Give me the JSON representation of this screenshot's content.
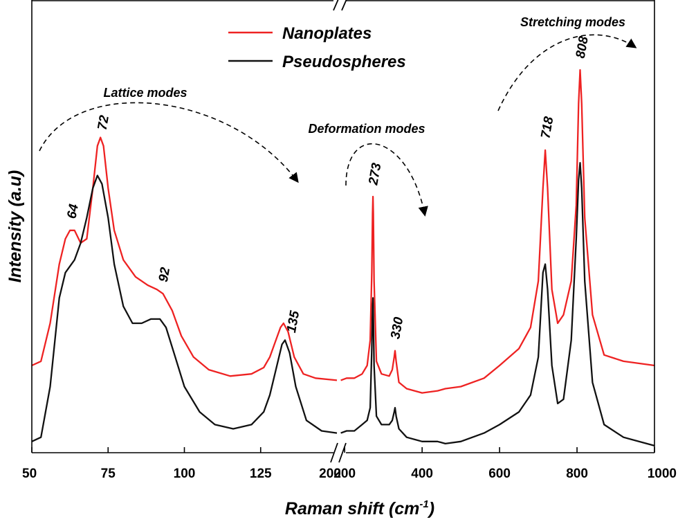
{
  "chart_data": {
    "type": "line",
    "xlabel": "Raman shift (cm",
    "xlabel_sup": "-1",
    "xlabel_close": ")",
    "ylabel": "Intensity (a.u)",
    "x_axis_break": true,
    "x_segments": [
      {
        "range": [
          50,
          150
        ],
        "ticks": [
          50,
          75,
          100,
          125
        ]
      },
      {
        "range": [
          180,
          1000
        ],
        "ticks": [
          200,
          400,
          600,
          800,
          1000
        ]
      }
    ],
    "x_tick_labels": [
      "50",
      "75",
      "100",
      "125",
      "200",
      "400",
      "600",
      "800",
      "1000"
    ],
    "break_label": "200",
    "grid": false,
    "legend_position": "top-center",
    "series": [
      {
        "name": "Nanoplates",
        "color": "#ee2222",
        "points": [
          [
            50,
            0.2
          ],
          [
            53,
            0.21
          ],
          [
            56,
            0.3
          ],
          [
            59,
            0.44
          ],
          [
            61,
            0.5
          ],
          [
            62.5,
            0.52
          ],
          [
            64,
            0.52
          ],
          [
            66,
            0.49
          ],
          [
            68,
            0.5
          ],
          [
            70,
            0.62
          ],
          [
            71.5,
            0.72
          ],
          [
            72.5,
            0.74
          ],
          [
            73.5,
            0.72
          ],
          [
            75,
            0.62
          ],
          [
            77,
            0.52
          ],
          [
            80,
            0.45
          ],
          [
            84,
            0.41
          ],
          [
            88,
            0.39
          ],
          [
            91,
            0.38
          ],
          [
            93,
            0.37
          ],
          [
            96,
            0.33
          ],
          [
            99,
            0.27
          ],
          [
            103,
            0.22
          ],
          [
            108,
            0.19
          ],
          [
            115,
            0.175
          ],
          [
            122,
            0.18
          ],
          [
            126,
            0.195
          ],
          [
            128,
            0.22
          ],
          [
            130,
            0.26
          ],
          [
            131.5,
            0.29
          ],
          [
            132.5,
            0.3
          ],
          [
            134,
            0.28
          ],
          [
            136,
            0.22
          ],
          [
            139,
            0.18
          ],
          [
            143,
            0.17
          ],
          [
            150,
            0.165
          ],
          [
            190,
            0.165
          ],
          [
            205,
            0.17
          ],
          [
            225,
            0.17
          ],
          [
            245,
            0.18
          ],
          [
            258,
            0.2
          ],
          [
            266,
            0.26
          ],
          [
            270,
            0.42
          ],
          [
            272,
            0.56
          ],
          [
            273,
            0.6
          ],
          [
            274,
            0.56
          ],
          [
            276,
            0.4
          ],
          [
            282,
            0.21
          ],
          [
            295,
            0.18
          ],
          [
            315,
            0.175
          ],
          [
            323,
            0.19
          ],
          [
            328,
            0.22
          ],
          [
            330,
            0.235
          ],
          [
            333,
            0.21
          ],
          [
            340,
            0.16
          ],
          [
            360,
            0.145
          ],
          [
            400,
            0.135
          ],
          [
            440,
            0.14
          ],
          [
            460,
            0.145
          ],
          [
            500,
            0.15
          ],
          [
            560,
            0.17
          ],
          [
            600,
            0.2
          ],
          [
            650,
            0.24
          ],
          [
            680,
            0.29
          ],
          [
            700,
            0.4
          ],
          [
            712,
            0.62
          ],
          [
            718,
            0.71
          ],
          [
            724,
            0.62
          ],
          [
            735,
            0.38
          ],
          [
            750,
            0.3
          ],
          [
            765,
            0.32
          ],
          [
            785,
            0.4
          ],
          [
            798,
            0.58
          ],
          [
            804,
            0.82
          ],
          [
            808,
            0.9
          ],
          [
            812,
            0.82
          ],
          [
            820,
            0.55
          ],
          [
            840,
            0.32
          ],
          [
            870,
            0.225
          ],
          [
            920,
            0.21
          ],
          [
            1000,
            0.2
          ]
        ]
      },
      {
        "name": "Pseudospheres",
        "color": "#111111",
        "points": [
          [
            50,
            0.02
          ],
          [
            53,
            0.03
          ],
          [
            56,
            0.15
          ],
          [
            59,
            0.36
          ],
          [
            61,
            0.42
          ],
          [
            64,
            0.45
          ],
          [
            66,
            0.49
          ],
          [
            68,
            0.55
          ],
          [
            70,
            0.62
          ],
          [
            71.5,
            0.65
          ],
          [
            73,
            0.63
          ],
          [
            75,
            0.55
          ],
          [
            77,
            0.44
          ],
          [
            80,
            0.34
          ],
          [
            83,
            0.3
          ],
          [
            86,
            0.3
          ],
          [
            89,
            0.31
          ],
          [
            92,
            0.31
          ],
          [
            94,
            0.29
          ],
          [
            97,
            0.22
          ],
          [
            100,
            0.15
          ],
          [
            105,
            0.09
          ],
          [
            110,
            0.06
          ],
          [
            116,
            0.05
          ],
          [
            122,
            0.06
          ],
          [
            126,
            0.09
          ],
          [
            128,
            0.13
          ],
          [
            130,
            0.19
          ],
          [
            132,
            0.25
          ],
          [
            133,
            0.26
          ],
          [
            134.5,
            0.23
          ],
          [
            136.5,
            0.15
          ],
          [
            140,
            0.07
          ],
          [
            145,
            0.045
          ],
          [
            150,
            0.04
          ],
          [
            190,
            0.04
          ],
          [
            205,
            0.045
          ],
          [
            225,
            0.045
          ],
          [
            245,
            0.06
          ],
          [
            258,
            0.07
          ],
          [
            266,
            0.1
          ],
          [
            270,
            0.24
          ],
          [
            272,
            0.34
          ],
          [
            273,
            0.36
          ],
          [
            274,
            0.32
          ],
          [
            276,
            0.2
          ],
          [
            282,
            0.08
          ],
          [
            295,
            0.06
          ],
          [
            315,
            0.06
          ],
          [
            323,
            0.07
          ],
          [
            328,
            0.09
          ],
          [
            330,
            0.1
          ],
          [
            333,
            0.08
          ],
          [
            340,
            0.05
          ],
          [
            360,
            0.03
          ],
          [
            400,
            0.02
          ],
          [
            440,
            0.02
          ],
          [
            460,
            0.015
          ],
          [
            500,
            0.02
          ],
          [
            560,
            0.04
          ],
          [
            600,
            0.06
          ],
          [
            650,
            0.09
          ],
          [
            680,
            0.13
          ],
          [
            700,
            0.22
          ],
          [
            712,
            0.42
          ],
          [
            718,
            0.44
          ],
          [
            724,
            0.38
          ],
          [
            735,
            0.2
          ],
          [
            750,
            0.11
          ],
          [
            765,
            0.12
          ],
          [
            785,
            0.26
          ],
          [
            798,
            0.5
          ],
          [
            804,
            0.64
          ],
          [
            808,
            0.68
          ],
          [
            812,
            0.62
          ],
          [
            820,
            0.4
          ],
          [
            840,
            0.16
          ],
          [
            870,
            0.06
          ],
          [
            920,
            0.03
          ],
          [
            1000,
            0.01
          ]
        ]
      }
    ],
    "peak_labels": [
      {
        "text": "64",
        "x": 63
      },
      {
        "text": "72",
        "x": 73
      },
      {
        "text": "92",
        "x": 93
      },
      {
        "text": "135",
        "x": 135
      },
      {
        "text": "273",
        "x": 273
      },
      {
        "text": "330",
        "x": 330
      },
      {
        "text": "718",
        "x": 718
      },
      {
        "text": "808",
        "x": 808
      }
    ],
    "mode_annotations": [
      {
        "text": "Lattice modes"
      },
      {
        "text": "Deformation modes"
      },
      {
        "text": "Stretching modes"
      }
    ]
  }
}
